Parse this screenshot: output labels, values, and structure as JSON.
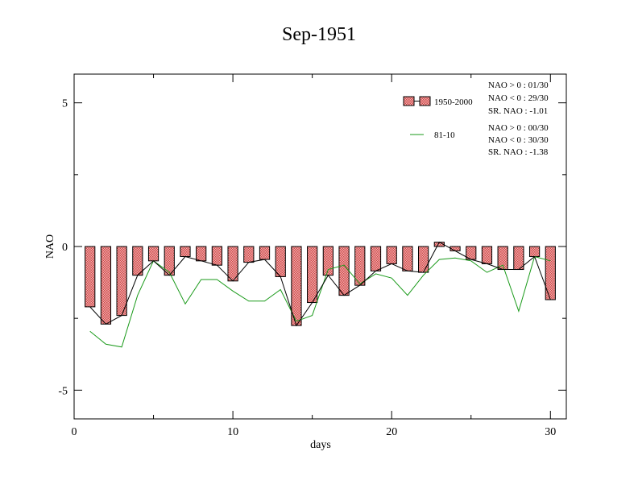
{
  "chart_data": {
    "type": "bar",
    "title": "Sep-1951",
    "xlabel": "days",
    "ylabel": "NAO",
    "xlim": [
      0,
      31
    ],
    "ylim": [
      -6,
      6
    ],
    "xticks": [
      "0",
      "10",
      "20",
      "30"
    ],
    "yticks": [
      "5",
      "0",
      "-5"
    ],
    "x": [
      1,
      2,
      3,
      4,
      5,
      6,
      7,
      8,
      9,
      10,
      11,
      12,
      13,
      14,
      15,
      16,
      17,
      18,
      19,
      20,
      21,
      22,
      23,
      24,
      25,
      26,
      27,
      28,
      29,
      30
    ],
    "series": [
      {
        "name": "1950-2000",
        "style": "bar+line",
        "values": [
          -2.1,
          -2.7,
          -2.4,
          -1.0,
          -0.5,
          -1.0,
          -0.35,
          -0.5,
          -0.65,
          -1.2,
          -0.55,
          -0.45,
          -1.05,
          -2.75,
          -1.95,
          -1.0,
          -1.7,
          -1.35,
          -0.85,
          -0.6,
          -0.85,
          -0.9,
          0.15,
          -0.15,
          -0.45,
          -0.6,
          -0.8,
          -0.8,
          -0.35,
          -1.85
        ]
      },
      {
        "name": "81-10",
        "style": "line",
        "values": [
          -2.95,
          -3.4,
          -3.5,
          -1.7,
          -0.5,
          -0.9,
          -2.0,
          -1.15,
          -1.15,
          -1.55,
          -1.9,
          -1.9,
          -1.5,
          -2.6,
          -2.4,
          -0.8,
          -0.65,
          -1.3,
          -0.95,
          -1.1,
          -1.7,
          -1.0,
          -0.45,
          -0.4,
          -0.5,
          -0.9,
          -0.65,
          -2.25,
          -0.35,
          -0.5
        ]
      }
    ],
    "legend": {
      "position": "top-right",
      "stats_1950_2000": [
        "NAO > 0 : 01/30",
        "NAO < 0 : 29/30",
        "SR. NAO : -1.01"
      ],
      "stats_81_10": [
        "NAO > 0 : 00/30",
        "NAO < 0 : 30/30",
        "SR. NAO : -1.38"
      ]
    },
    "colors": {
      "bar_fill": "#e98a8a",
      "bar_stroke": "#000000",
      "line_1950_2000": "#000000",
      "line_81_10": "#1a9a1a"
    },
    "grid": false
  }
}
